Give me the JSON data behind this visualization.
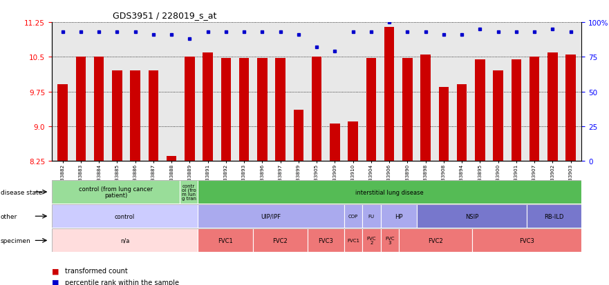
{
  "title": "GDS3951 / 228019_s_at",
  "samples": [
    "GSM533882",
    "GSM533883",
    "GSM533884",
    "GSM533885",
    "GSM533886",
    "GSM533887",
    "GSM533888",
    "GSM533889",
    "GSM533891",
    "GSM533892",
    "GSM533893",
    "GSM533896",
    "GSM533897",
    "GSM533899",
    "GSM533905",
    "GSM533909",
    "GSM533910",
    "GSM533904",
    "GSM533906",
    "GSM533890",
    "GSM533898",
    "GSM533908",
    "GSM533894",
    "GSM533895",
    "GSM533900",
    "GSM533901",
    "GSM533907",
    "GSM533902",
    "GSM533903"
  ],
  "bar_values": [
    9.9,
    10.5,
    10.5,
    10.2,
    10.2,
    10.2,
    8.35,
    10.5,
    10.6,
    10.47,
    10.47,
    10.47,
    10.47,
    9.35,
    10.5,
    9.05,
    9.1,
    10.47,
    11.15,
    10.47,
    10.55,
    9.85,
    9.9,
    10.45,
    10.2,
    10.45,
    10.5,
    10.6,
    10.55
  ],
  "percentile_values": [
    93,
    93,
    93,
    93,
    93,
    91,
    91,
    88,
    93,
    93,
    93,
    93,
    93,
    91,
    82,
    79,
    93,
    93,
    100,
    93,
    93,
    91,
    91,
    95,
    93,
    93,
    93,
    95,
    93
  ],
  "ylim": [
    8.25,
    11.25
  ],
  "yticks_left": [
    8.25,
    9.0,
    9.75,
    10.5,
    11.25
  ],
  "yticks_right": [
    0,
    25,
    50,
    75,
    100
  ],
  "bar_color": "#cc0000",
  "dot_color": "#0000cc",
  "bg_color": "#e8e8e8",
  "disease_state_rows": [
    {
      "label": "control (from lung cancer\npatient)",
      "color": "#99dd99",
      "start": 0,
      "end": 7
    },
    {
      "label": "contr\nol (fro\nm lun\ng tran",
      "color": "#99dd99",
      "start": 7,
      "end": 8
    },
    {
      "label": "interstitial lung disease",
      "color": "#55bb55",
      "start": 8,
      "end": 29
    }
  ],
  "other_rows": [
    {
      "label": "control",
      "color": "#ccccff",
      "start": 0,
      "end": 8
    },
    {
      "label": "UIP/IPF",
      "color": "#aaaaee",
      "start": 8,
      "end": 16
    },
    {
      "label": "COP",
      "color": "#aaaaee",
      "start": 16,
      "end": 17
    },
    {
      "label": "FU",
      "color": "#aaaaee",
      "start": 17,
      "end": 18
    },
    {
      "label": "HP",
      "color": "#aaaaee",
      "start": 18,
      "end": 20
    },
    {
      "label": "NSIP",
      "color": "#7777cc",
      "start": 20,
      "end": 26
    },
    {
      "label": "RB-ILD",
      "color": "#7777cc",
      "start": 26,
      "end": 29
    }
  ],
  "specimen_rows": [
    {
      "label": "n/a",
      "color": "#ffdddd",
      "start": 0,
      "end": 8
    },
    {
      "label": "FVC1",
      "color": "#ee7777",
      "start": 8,
      "end": 11
    },
    {
      "label": "FVC2",
      "color": "#ee7777",
      "start": 11,
      "end": 14
    },
    {
      "label": "FVC3",
      "color": "#ee7777",
      "start": 14,
      "end": 16
    },
    {
      "label": "FVC1",
      "color": "#ee7777",
      "start": 16,
      "end": 17
    },
    {
      "label": "FVC\n2",
      "color": "#ee7777",
      "start": 17,
      "end": 18
    },
    {
      "label": "FVC\n3",
      "color": "#ee7777",
      "start": 18,
      "end": 19
    },
    {
      "label": "FVC2",
      "color": "#ee7777",
      "start": 19,
      "end": 23
    },
    {
      "label": "FVC3",
      "color": "#ee7777",
      "start": 23,
      "end": 29
    }
  ],
  "row_labels": [
    "disease state",
    "other",
    "specimen"
  ]
}
